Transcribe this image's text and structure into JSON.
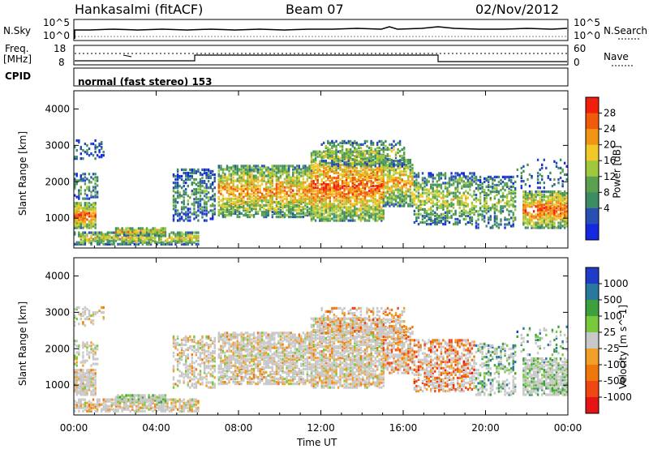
{
  "header": {
    "station": "Hankasalmi (fitACF)",
    "beam": "Beam 07",
    "date": "02/Nov/2012"
  },
  "left_labels": {
    "nsky": "N.Sky",
    "freq": "Freq.",
    "mhz": "[MHz]",
    "cpid": "CPID"
  },
  "right_labels": {
    "nsearch": "N.Search",
    "nave": "Nave"
  },
  "cpid_text": "normal (fast stereo) 153",
  "nsky_ticks": {
    "top_left": "10^5",
    "bot_left": "10^0",
    "top_right": "10^5",
    "bot_right": "10^0"
  },
  "freq_ticks": {
    "top_left": "18",
    "bot_left": "8",
    "top_right": "60",
    "bot_right": "0"
  },
  "colors": {
    "power": [
      "#1428e0",
      "#2850b4",
      "#3c8c64",
      "#5aa050",
      "#a0c83c",
      "#f0c828",
      "#f09614",
      "#f05a0a",
      "#f01e0a"
    ],
    "velocity": [
      "#e61414",
      "#f04614",
      "#f0780a",
      "#f0a028",
      "#c8c8c8",
      "#78c83c",
      "#3ca03c",
      "#2878a0",
      "#1e3cc8"
    ]
  },
  "chart_data": [
    {
      "type": "heatmap",
      "title": "Power",
      "ylabel": "Slant Range [km]",
      "xlabel": "Time UT",
      "colorbar_label": "Power [dB]",
      "colorbar_ticks": [
        "4",
        "8",
        "12",
        "16",
        "20",
        "24",
        "28"
      ],
      "ylim": [
        180,
        4500
      ],
      "yticks": [
        "1000",
        "2000",
        "3000",
        "4000"
      ],
      "xticks": [
        "00:00",
        "04:00",
        "08:00",
        "12:00",
        "16:00",
        "20:00",
        "00:00"
      ]
    },
    {
      "type": "heatmap",
      "title": "Velocity",
      "ylabel": "Slant Range [km]",
      "xlabel": "Time UT",
      "colorbar_label": "Velocity [m s^-1]",
      "colorbar_ticks": [
        "1000",
        "500",
        "100",
        "25",
        "-25",
        "-100",
        "-500",
        "-1000"
      ],
      "ylim": [
        180,
        4500
      ],
      "yticks": [
        "1000",
        "2000",
        "3000",
        "4000"
      ],
      "xticks": [
        "00:00",
        "04:00",
        "08:00",
        "12:00",
        "16:00",
        "20:00",
        "00:00"
      ]
    }
  ]
}
